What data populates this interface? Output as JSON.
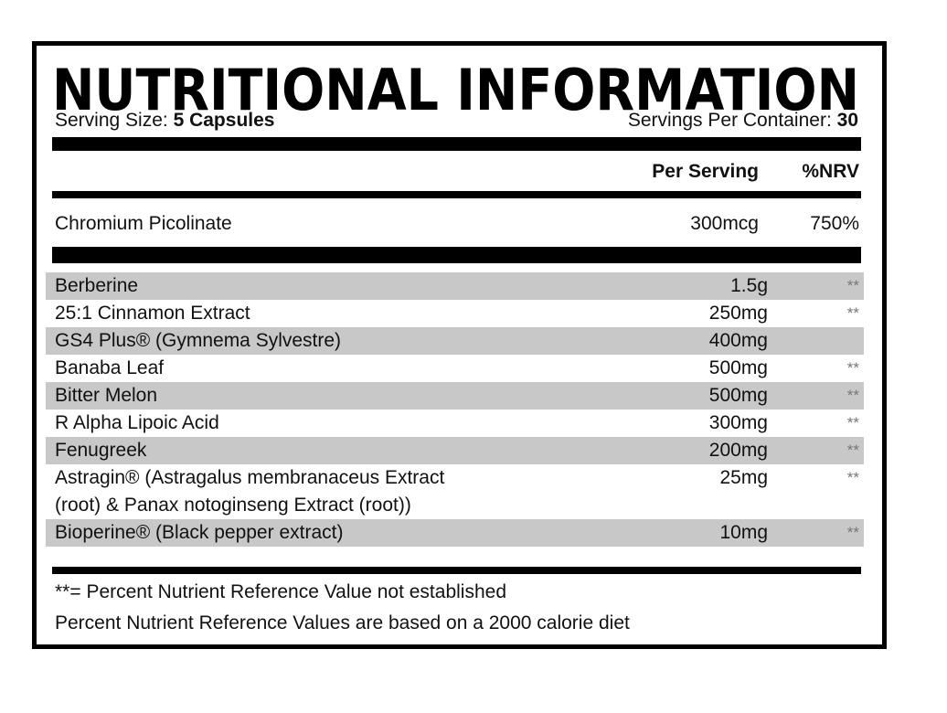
{
  "header": {
    "title": "NUTRITIONAL INFORMATION",
    "serving_size": {
      "label": "Serving Size:",
      "value": "5 Capsules"
    },
    "servings_per_container": {
      "label": "Servings Per Container:",
      "value": "30"
    }
  },
  "table": {
    "columns": [
      "Per Serving",
      "%NRV"
    ],
    "main": {
      "name": "Chromium Picolinate",
      "per_serving": "300mcg",
      "nrv": "750%"
    },
    "rows": [
      {
        "name": "Berberine",
        "per_serving": "1.5g",
        "nrv": "**"
      },
      {
        "name": "25:1 Cinnamon Extract",
        "per_serving": "250mg",
        "nrv": "**"
      },
      {
        "name": "GS4 Plus® (Gymnema Sylvestre)",
        "per_serving": "400mg"
      },
      {
        "name": "Banaba Leaf",
        "per_serving": "500mg",
        "nrv": "**"
      },
      {
        "name": "Bitter Melon",
        "per_serving": "500mg",
        "nrv": "**"
      },
      {
        "name": "R Alpha Lipoic Acid",
        "per_serving": "300mg",
        "nrv": "**"
      },
      {
        "name": "Fenugreek",
        "per_serving": "200mg",
        "nrv": "**"
      },
      {
        "name": "Astragin® (Astragalus membranaceus Extract (root) & Panax notoginseng Extract (root))",
        "per_serving": "25mg",
        "nrv": "**"
      },
      {
        "name": "Bioperine® (Black pepper extract)",
        "per_serving": "10mg",
        "nrv": "**"
      }
    ]
  },
  "footnotes": [
    "**= Percent Nutrient Reference Value not established",
    "Percent Nutrient Reference Values are based on a 2000 calorie diet"
  ]
}
